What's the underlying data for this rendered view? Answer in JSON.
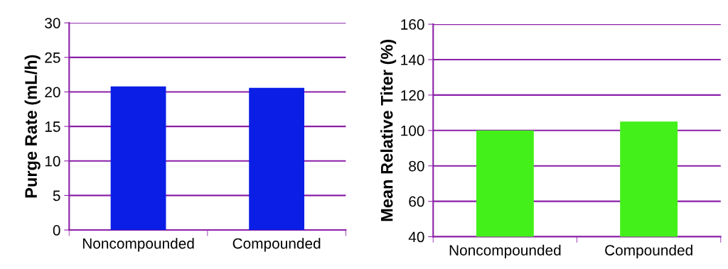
{
  "chart_data": [
    {
      "type": "bar",
      "categories": [
        "Noncompounded",
        "Compounded"
      ],
      "ylabel": "Purge Rate (mL/h)",
      "series": [
        {
          "color": "#0a1ee6",
          "values": [
            20.8,
            20.6
          ]
        }
      ],
      "ylim": [
        0,
        30
      ],
      "yticks": [
        0,
        5,
        10,
        15,
        20,
        25,
        30
      ],
      "grid": "y"
    },
    {
      "type": "bar",
      "categories": [
        "Noncompounded",
        "Compounded"
      ],
      "ylabel": "Mean Relative Titer (%)",
      "series": [
        {
          "color": "#44f01a",
          "values": [
            100,
            105
          ]
        }
      ],
      "ylim": [
        40,
        160
      ],
      "yticks": [
        40,
        60,
        80,
        100,
        120,
        140,
        160
      ],
      "grid": "y"
    }
  ]
}
